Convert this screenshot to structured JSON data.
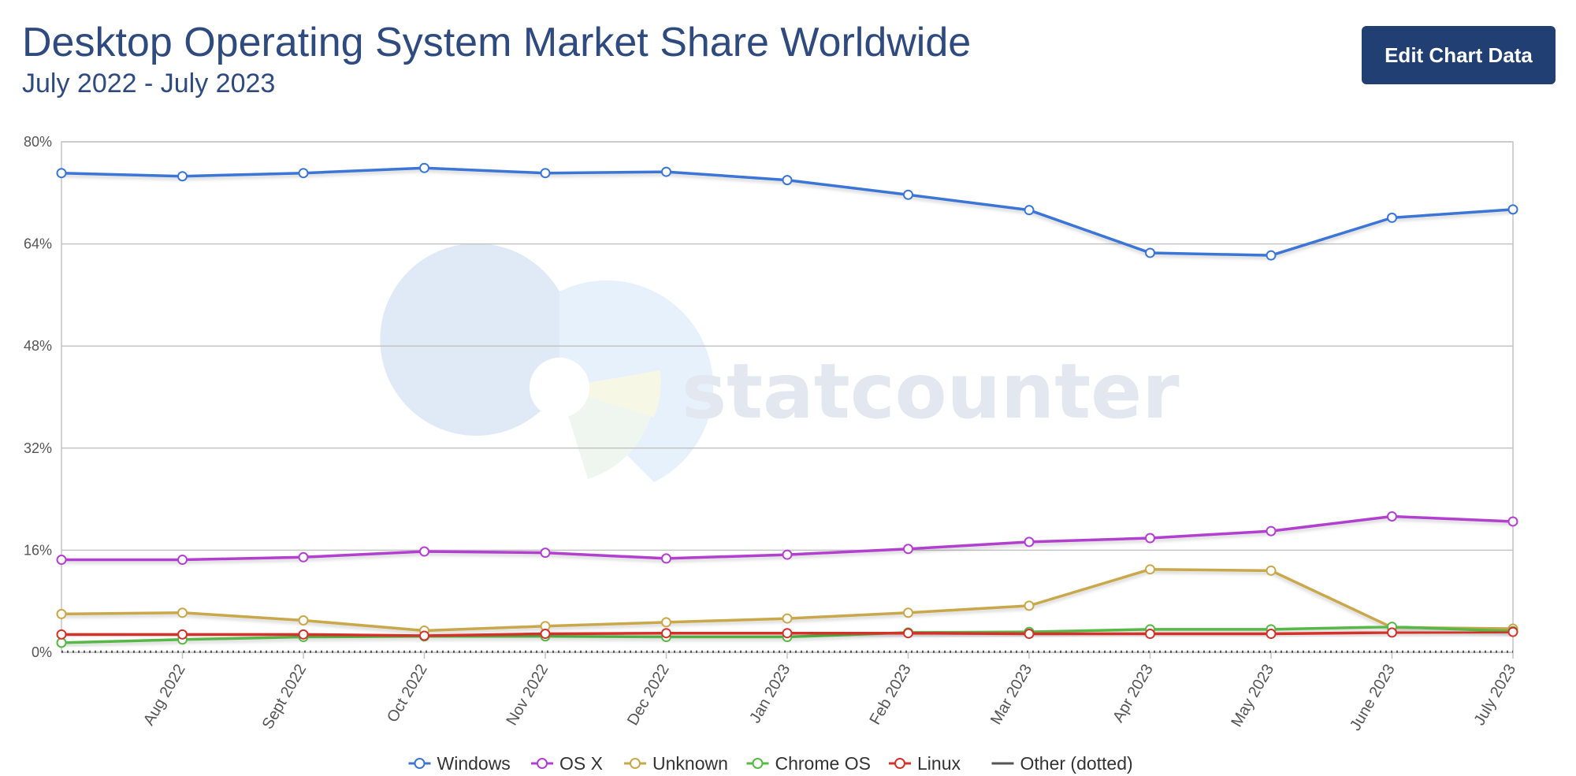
{
  "header": {
    "title": "Desktop Operating System Market Share Worldwide",
    "subtitle": "July 2022 - July 2023",
    "edit_button_label": "Edit Chart Data"
  },
  "watermark": {
    "text": "statcounter"
  },
  "chart_data": {
    "type": "line",
    "x": [
      "July 2022",
      "Aug 2022",
      "Sept 2022",
      "Oct 2022",
      "Nov 2022",
      "Dec 2022",
      "Jan 2023",
      "Feb 2023",
      "Mar 2023",
      "Apr 2023",
      "May 2023",
      "June 2023",
      "July 2023"
    ],
    "x_tick_labels": [
      "",
      "Aug 2022",
      "Sept 2022",
      "Oct 2022",
      "Nov 2022",
      "Dec 2022",
      "Jan 2023",
      "Feb 2023",
      "Mar 2023",
      "Apr 2023",
      "May 2023",
      "June 2023",
      "July 2023"
    ],
    "y_ticks": [
      "0%",
      "16%",
      "32%",
      "48%",
      "64%",
      "80%"
    ],
    "ylim": [
      0,
      80
    ],
    "grid": true,
    "legend_position": "bottom",
    "series": [
      {
        "name": "Windows",
        "color": "#3a75d6",
        "values": [
          75.1,
          74.6,
          75.1,
          75.9,
          75.1,
          75.3,
          74.0,
          71.7,
          69.3,
          62.6,
          62.2,
          68.1,
          69.4
        ]
      },
      {
        "name": "OS X",
        "color": "#b23fcf",
        "values": [
          14.5,
          14.5,
          14.9,
          15.8,
          15.6,
          14.7,
          15.3,
          16.2,
          17.3,
          17.9,
          19.0,
          21.3,
          20.5
        ]
      },
      {
        "name": "Unknown",
        "color": "#c8a84b",
        "values": [
          6.0,
          6.2,
          5.0,
          3.4,
          4.1,
          4.7,
          5.3,
          6.2,
          7.3,
          13.0,
          12.8,
          3.9,
          3.7
        ]
      },
      {
        "name": "Chrome OS",
        "color": "#57b846",
        "values": [
          1.5,
          2.0,
          2.4,
          2.5,
          2.5,
          2.4,
          2.4,
          3.1,
          3.2,
          3.6,
          3.6,
          4.0,
          3.3
        ]
      },
      {
        "name": "Linux",
        "color": "#d3312b",
        "values": [
          2.8,
          2.8,
          2.8,
          2.6,
          2.9,
          3.0,
          3.0,
          3.0,
          2.9,
          2.9,
          2.9,
          3.1,
          3.2
        ]
      },
      {
        "name": "Other (dotted)",
        "color": "#555555",
        "values": [
          0.1,
          0.1,
          0.1,
          0.1,
          0.1,
          0.1,
          0.1,
          0.1,
          0.1,
          0.1,
          0.1,
          0.1,
          0.1
        ]
      }
    ]
  }
}
